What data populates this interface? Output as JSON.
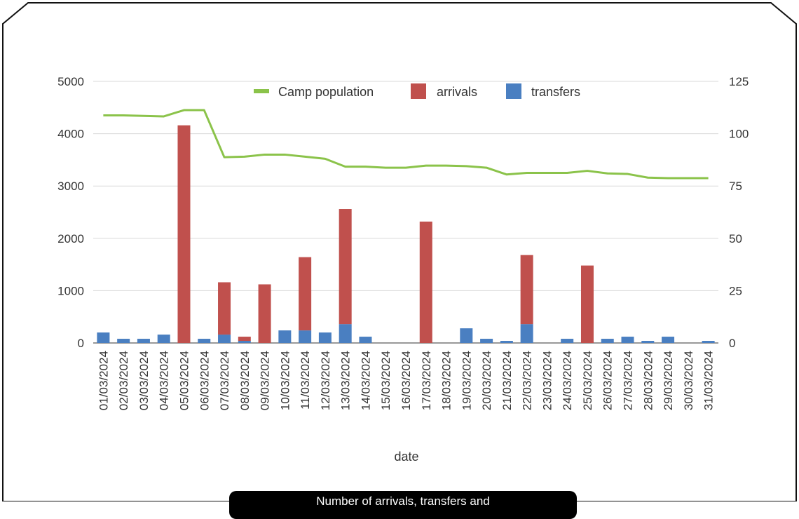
{
  "chart_data": {
    "type": "bar+line",
    "xlabel": "date",
    "categories": [
      "01/03/2024",
      "02/03/2024",
      "03/03/2024",
      "04/03/2024",
      "05/03/2024",
      "06/03/2024",
      "07/03/2024",
      "08/03/2024",
      "09/03/2024",
      "10/03/2024",
      "11/03/2024",
      "12/03/2024",
      "13/03/2024",
      "14/03/2024",
      "15/03/2024",
      "16/03/2024",
      "17/03/2024",
      "18/03/2024",
      "19/03/2024",
      "20/03/2024",
      "21/03/2024",
      "22/03/2024",
      "23/03/2024",
      "24/03/2024",
      "25/03/2024",
      "26/03/2024",
      "27/03/2024",
      "28/03/2024",
      "29/03/2024",
      "30/03/2024",
      "31/03/2024"
    ],
    "left_axis": {
      "ylim": [
        0,
        5000
      ],
      "ticks": [
        "0",
        "1000",
        "2000",
        "3000",
        "4000",
        "5000"
      ]
    },
    "right_axis": {
      "ylim": [
        0,
        125
      ],
      "ticks": [
        "0",
        "25",
        "50",
        "75",
        "100",
        "125"
      ]
    },
    "series": [
      {
        "name": "Camp population",
        "kind": "line",
        "axis": "left",
        "color": "#8bc34a",
        "values": [
          4350,
          4350,
          4340,
          4330,
          4450,
          4450,
          3550,
          3560,
          3600,
          3600,
          3560,
          3520,
          3370,
          3370,
          3350,
          3350,
          3390,
          3390,
          3380,
          3350,
          3220,
          3250,
          3250,
          3250,
          3290,
          3240,
          3230,
          3160,
          3150,
          3150,
          3150
        ]
      },
      {
        "name": "arrivals",
        "kind": "bar",
        "axis": "right",
        "color": "#c0504d",
        "values": [
          0,
          0,
          0,
          0,
          104,
          0,
          25,
          2,
          28,
          0,
          35,
          0,
          55,
          0,
          0,
          0,
          58,
          0,
          0,
          0,
          0,
          33,
          0,
          0,
          37,
          0,
          0,
          0,
          0,
          0,
          0
        ]
      },
      {
        "name": "transfers",
        "kind": "bar",
        "axis": "right",
        "color": "#4a7fc1",
        "values": [
          5,
          2,
          2,
          4,
          0,
          2,
          4,
          1,
          0,
          6,
          6,
          5,
          9,
          3,
          0,
          0,
          0,
          0,
          7,
          2,
          1,
          9,
          0,
          2,
          0,
          2,
          3,
          1,
          3,
          0,
          1
        ]
      }
    ],
    "legend": {
      "position": "top"
    },
    "grid": true
  },
  "caption": "Number of arrivals, transfers and"
}
